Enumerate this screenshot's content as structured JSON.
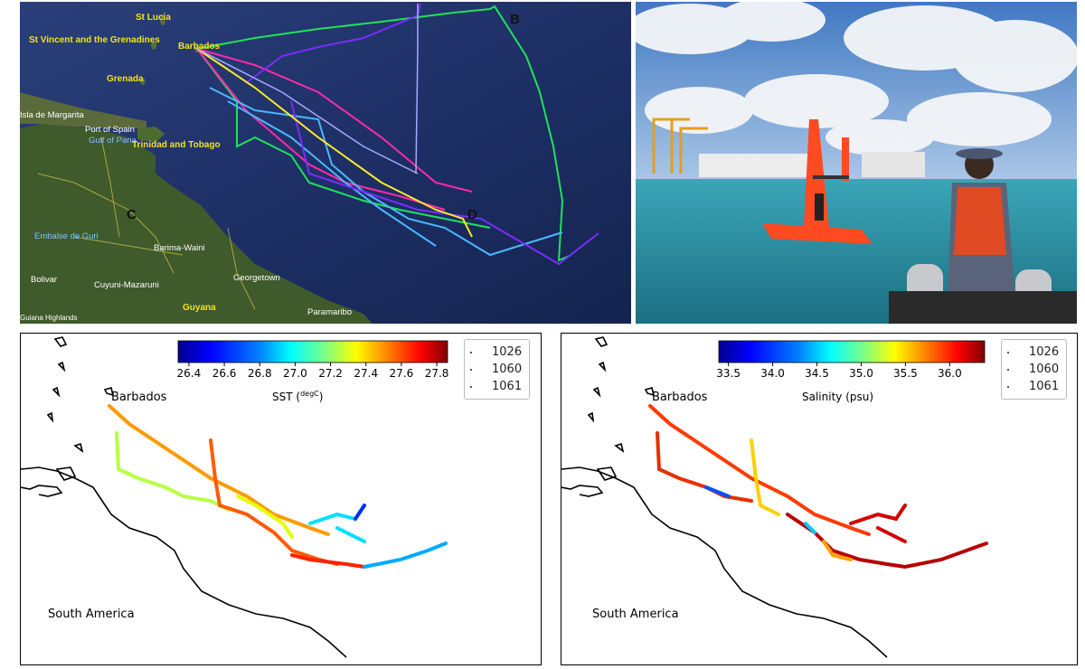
{
  "satellite_map": {
    "labels": {
      "st_lucia": "St Lucia",
      "st_vincent": "St Vincent and the Grenadines",
      "barbados": "Barbados",
      "grenada": "Grenada",
      "isla_margarita": "Isla de Margarita",
      "port_of_spain": "Port of Spain",
      "gulf_of_paria": "Gulf of Paria",
      "trinidad": "Trinidad and Tobago",
      "embalse": "Embalse de Guri",
      "barima": "Barima-Waini",
      "bolivar": "Bolivar",
      "cuyuni": "Cuyuni-Mazaruni",
      "georgetown": "Georgetown",
      "guyana": "Guyana",
      "paramaribo": "Paramaribo",
      "guiana_highlands": "Guiana Highlands",
      "marker_b": "B",
      "marker_c": "C",
      "marker_d": "D"
    },
    "track_colors": [
      "#22e05a",
      "#ff2aa8",
      "#49b8ff",
      "#7a2cff",
      "#ffe92a",
      "#a8a8ff",
      "#ff3b3b"
    ]
  },
  "sst_panel": {
    "colorbar_title": "SST (",
    "colorbar_title_unit": "degC",
    "colorbar_title_end": ")",
    "ticks": [
      "26.4",
      "26.6",
      "26.8",
      "27.0",
      "27.2",
      "27.4",
      "27.6",
      "27.8"
    ],
    "place_barbados": "Barbados",
    "place_south_america": "South America",
    "legend": [
      "1026",
      "1060",
      "1061"
    ]
  },
  "sal_panel": {
    "colorbar_title": "Salinity (psu)",
    "ticks": [
      "33.5",
      "34.0",
      "34.5",
      "35.0",
      "35.5",
      "36.0"
    ],
    "place_barbados": "Barbados",
    "place_south_america": "South America",
    "legend": [
      "1026",
      "1060",
      "1061"
    ]
  },
  "colors": {
    "jet": [
      "#00008f",
      "#0000ff",
      "#0080ff",
      "#00ffff",
      "#80ff80",
      "#ffff00",
      "#ff8000",
      "#ff0000",
      "#800000"
    ]
  }
}
